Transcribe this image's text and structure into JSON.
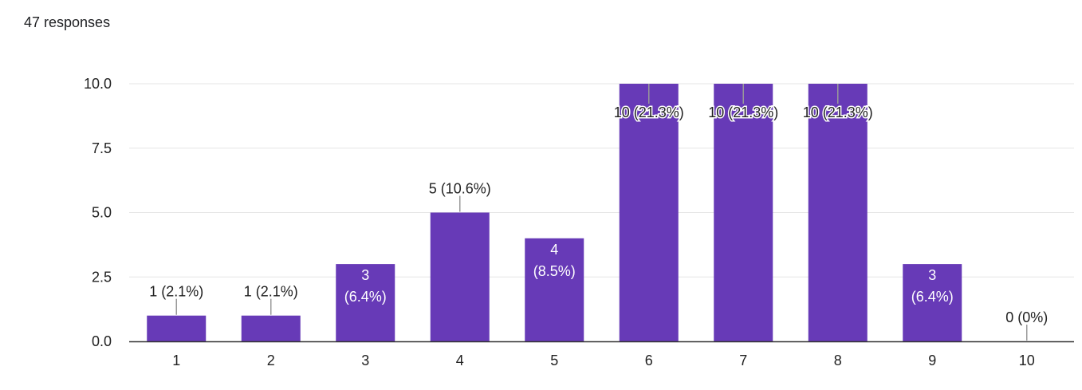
{
  "summary": {
    "responses_text": "47 responses"
  },
  "colors": {
    "bar": "#673ab7",
    "grid": "#e6e6e6",
    "axis": "#333333",
    "leader": "#999999",
    "label_halo": "#ffffff"
  },
  "chart_data": {
    "type": "bar",
    "categories": [
      "1",
      "2",
      "3",
      "4",
      "5",
      "6",
      "7",
      "8",
      "9",
      "10"
    ],
    "values": [
      1,
      1,
      3,
      5,
      4,
      10,
      10,
      10,
      3,
      0
    ],
    "data_labels": [
      "1 (2.1%)",
      "1 (2.1%)",
      "3 (6.4%)",
      "5 (10.6%)",
      "4 (8.5%)",
      "10 (21.3%)",
      "10 (21.3%)",
      "10 (21.3%)",
      "3 (6.4%)",
      "0 (0%)"
    ],
    "label_placement": [
      "outside",
      "outside",
      "inside",
      "outside",
      "inside",
      "inside-overlap",
      "inside-overlap",
      "inside-overlap",
      "inside",
      "outside"
    ],
    "ylim": [
      0,
      10
    ],
    "yticks": [
      "0.0",
      "2.5",
      "5.0",
      "7.5",
      "10.0"
    ],
    "grid": true,
    "title": "",
    "xlabel": "",
    "ylabel": ""
  }
}
